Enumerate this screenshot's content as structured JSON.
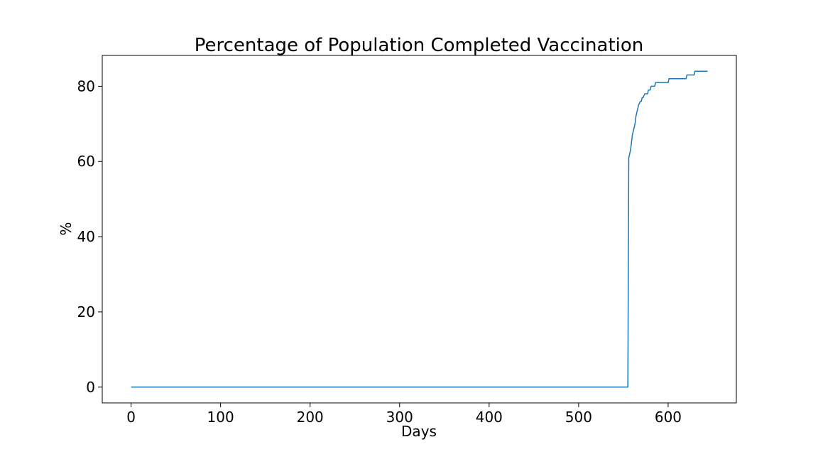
{
  "chart_data": {
    "type": "line",
    "title": "Percentage of Population Completed Vaccination",
    "xlabel": "Days",
    "ylabel": "%",
    "xlim": [
      -32.2,
      676.2
    ],
    "ylim": [
      -4.2,
      88.2
    ],
    "x_ticks": [
      0,
      100,
      200,
      300,
      400,
      500,
      600
    ],
    "y_ticks": [
      0,
      20,
      40,
      60,
      80
    ],
    "grid": false,
    "line_color": "#1f77b4",
    "series": [
      {
        "x": [
          0,
          555,
          556,
          558,
          559,
          560,
          561,
          562,
          563,
          564,
          565,
          566,
          567,
          568,
          569,
          570,
          571,
          572,
          574,
          575,
          577,
          578,
          580,
          581,
          585,
          586,
          588,
          589,
          600,
          601,
          620,
          621,
          629,
          630,
          644
        ],
        "y": [
          0,
          0,
          61,
          63,
          65,
          67,
          68,
          69,
          70,
          72,
          73,
          74,
          75,
          75.5,
          76,
          76,
          77,
          77,
          78,
          78,
          78,
          79,
          79,
          80,
          80,
          81,
          81,
          81,
          81,
          82,
          82,
          83,
          83,
          84,
          84
        ]
      }
    ]
  }
}
